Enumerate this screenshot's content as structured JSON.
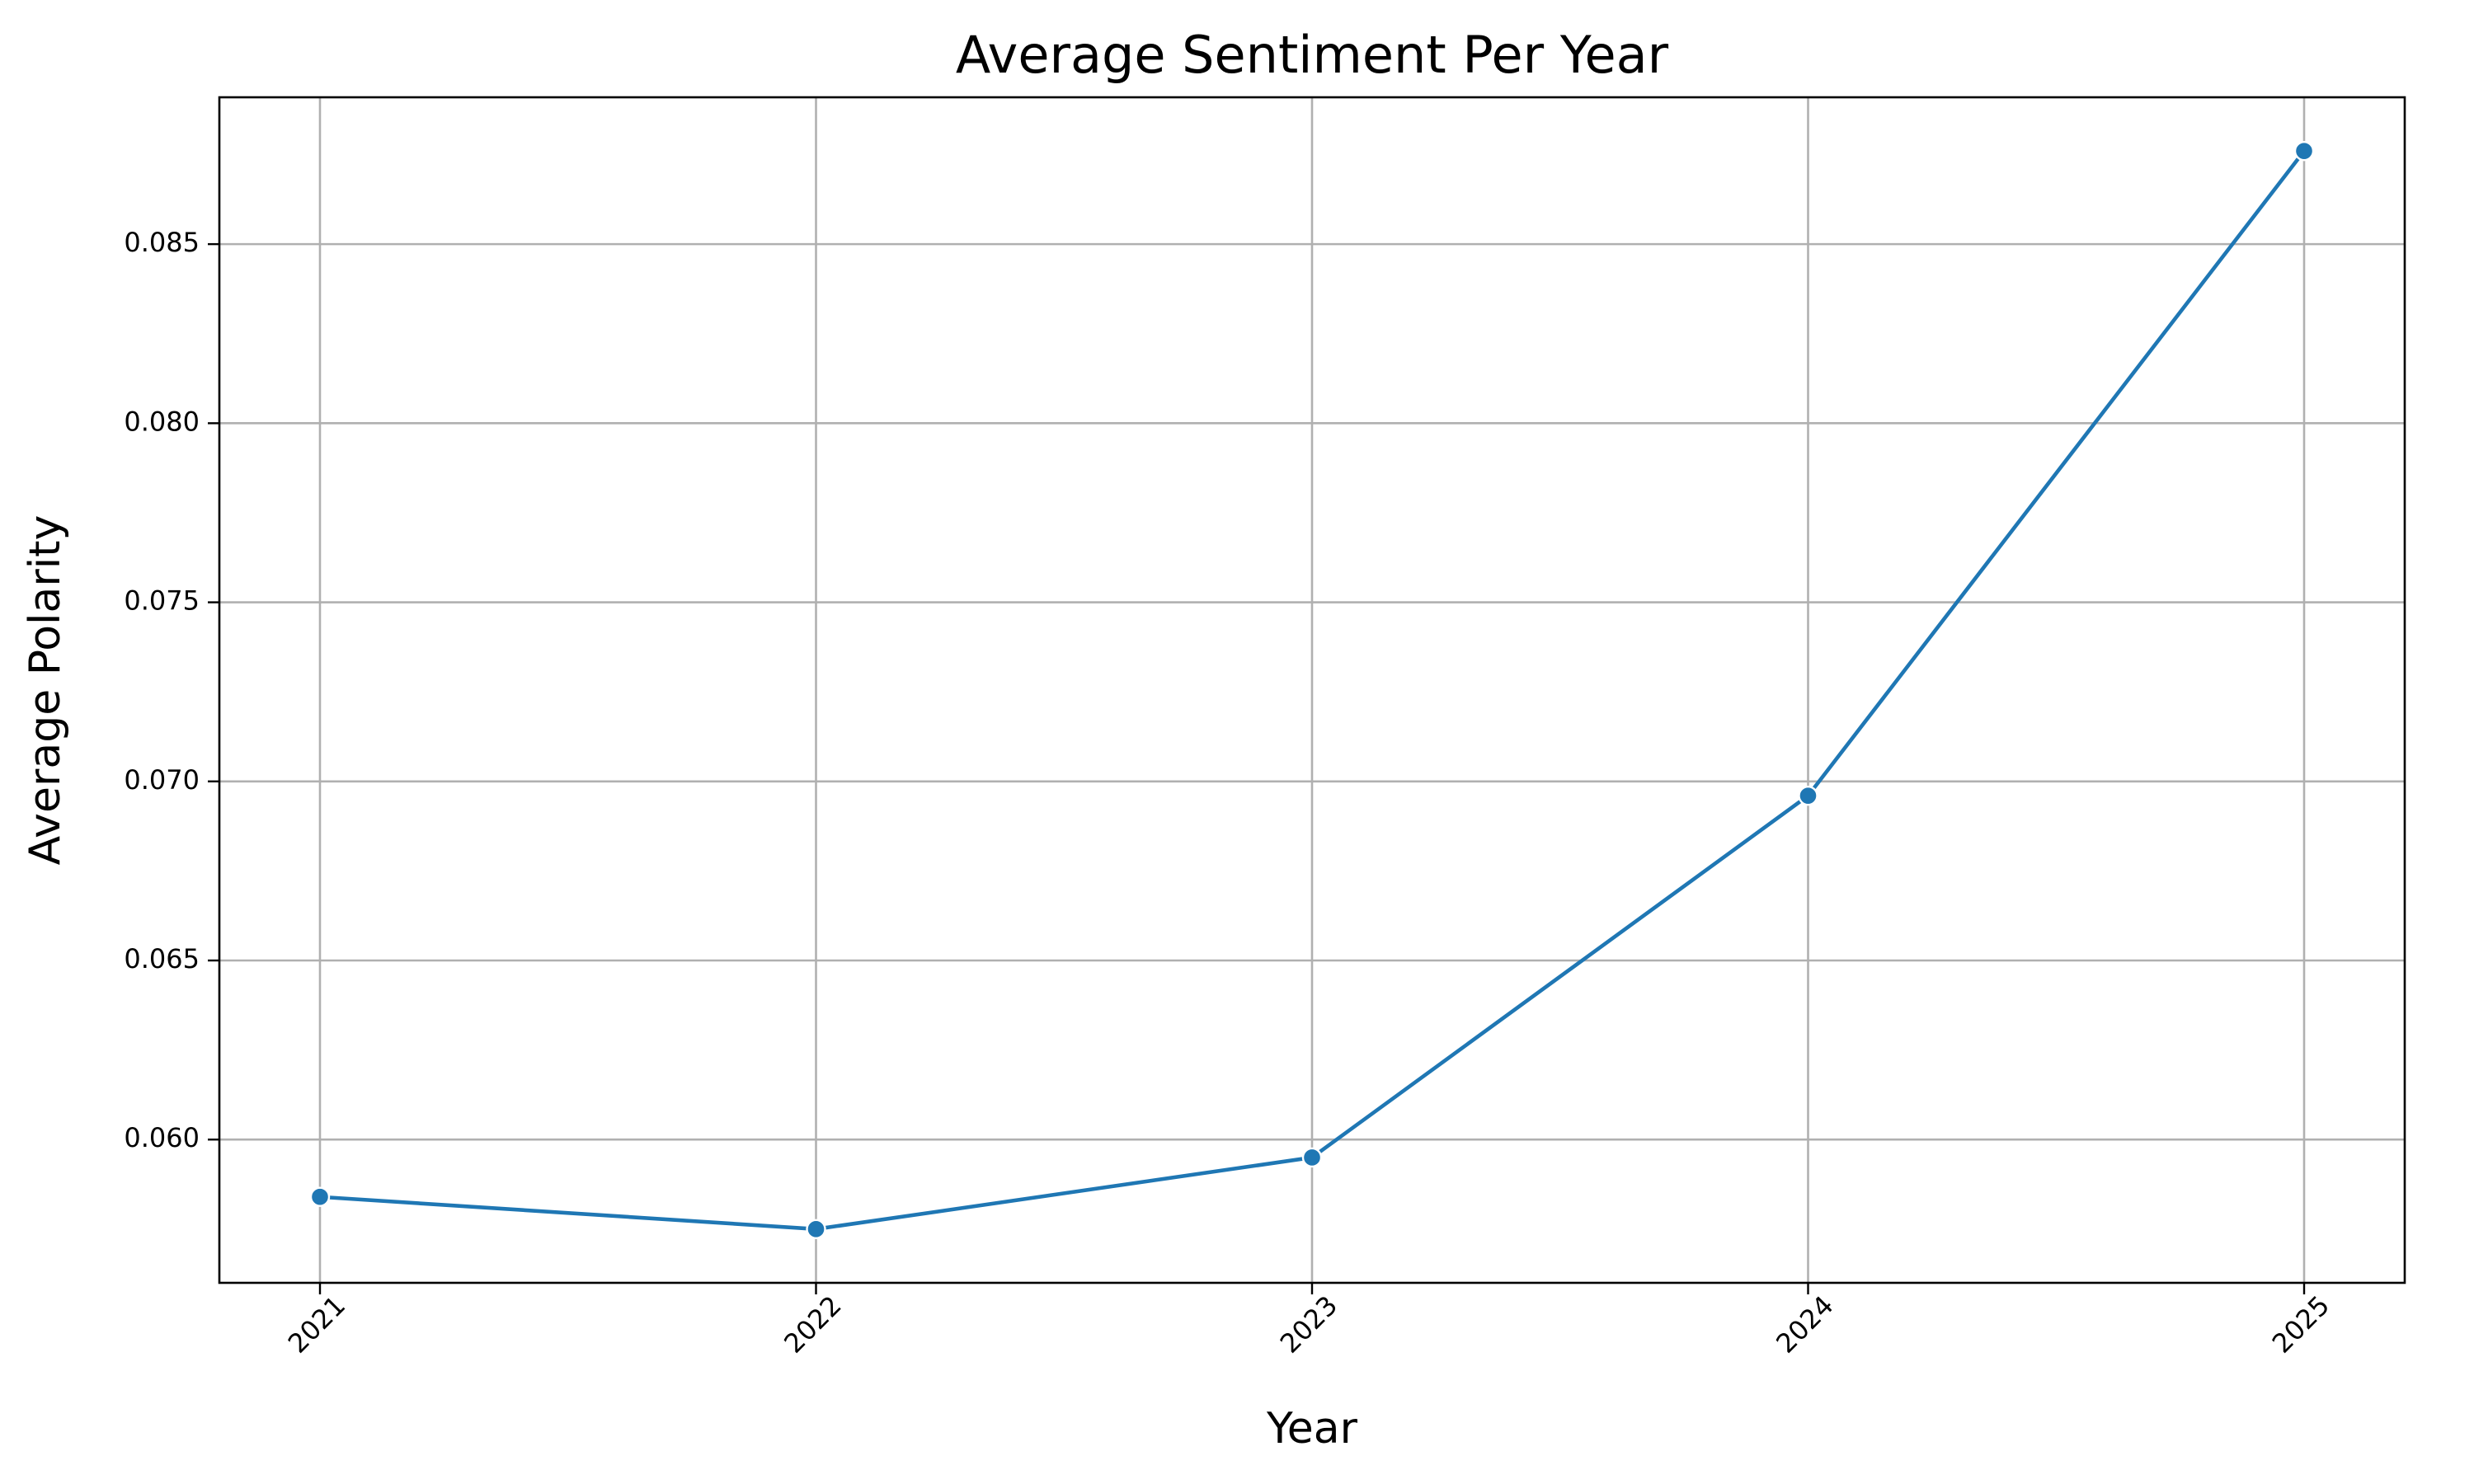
{
  "chart_data": {
    "type": "line",
    "title": "Average Sentiment Per Year",
    "xlabel": "Year",
    "ylabel": "Average Polarity",
    "categories": [
      "2021",
      "2022",
      "2023",
      "2024",
      "2025"
    ],
    "series": [
      {
        "values": [
          0.0584,
          0.0575,
          0.0595,
          0.0696,
          0.0876
        ],
        "color": "#1f77b4",
        "marker": "circle"
      }
    ],
    "yticks": [
      0.06,
      0.065,
      0.07,
      0.075,
      0.08,
      0.085
    ],
    "ytick_labels": [
      "0.060",
      "0.065",
      "0.070",
      "0.075",
      "0.080",
      "0.085"
    ],
    "ylim": [
      0.056,
      0.0891
    ],
    "grid": true,
    "xtick_rotation": -45
  }
}
